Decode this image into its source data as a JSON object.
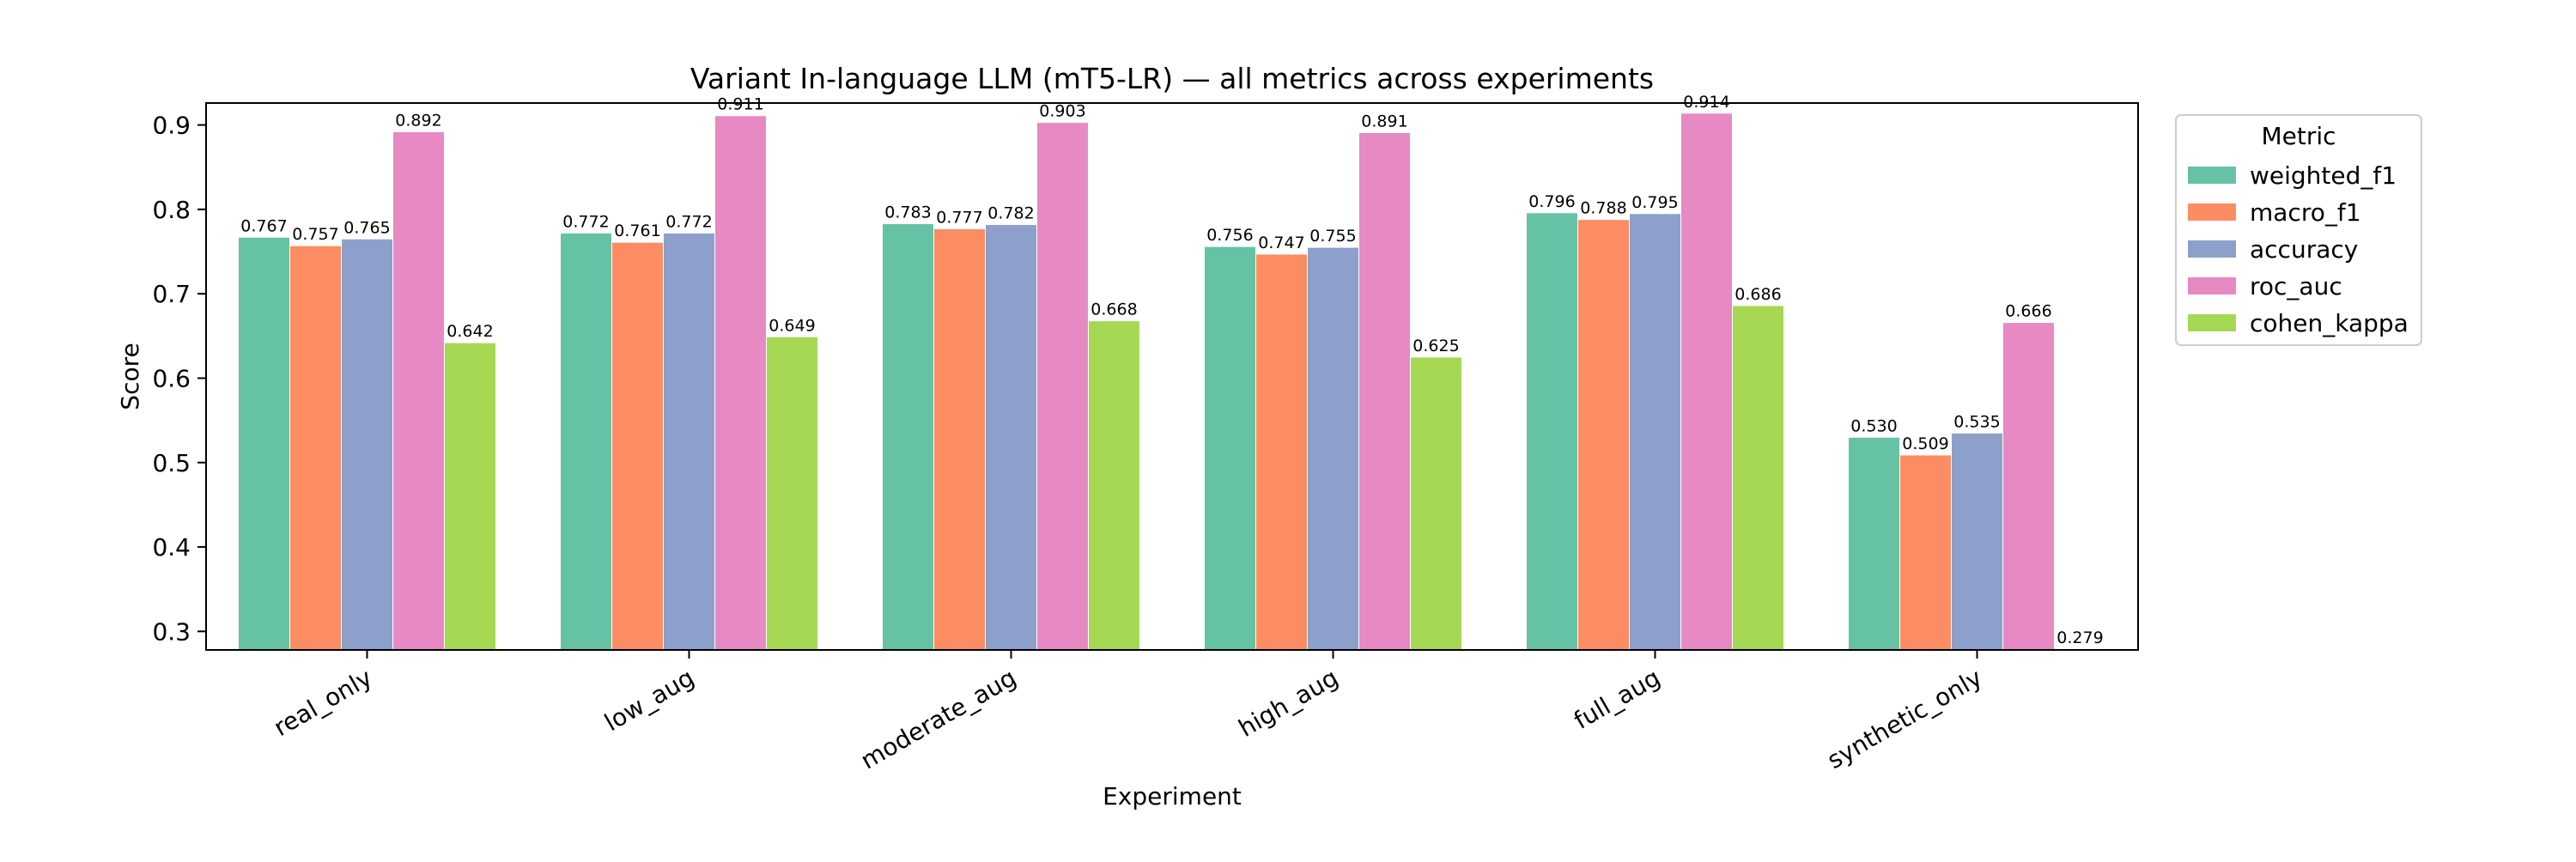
{
  "chart_data": {
    "type": "bar",
    "title": "Variant In-language LLM (mT5-LR) — all metrics across experiments",
    "xlabel": "Experiment",
    "ylabel": "Score",
    "ylim": [
      0.278,
      0.926
    ],
    "yticks": [
      "0.3",
      "0.4",
      "0.5",
      "0.6",
      "0.7",
      "0.8",
      "0.9"
    ],
    "grid": false,
    "legend": {
      "title": "Metric",
      "placement": "top-right outside"
    },
    "categories": [
      "real_only",
      "low_aug",
      "moderate_aug",
      "high_aug",
      "full_aug",
      "synthetic_only"
    ],
    "series": [
      {
        "name": "weighted_f1",
        "color": "#66c2a5",
        "values": [
          0.767,
          0.772,
          0.783,
          0.756,
          0.796,
          0.53
        ],
        "labels": [
          "0.767",
          "0.772",
          "0.783",
          "0.756",
          "0.796",
          "0.530"
        ]
      },
      {
        "name": "macro_f1",
        "color": "#fc8d62",
        "values": [
          0.757,
          0.761,
          0.777,
          0.747,
          0.788,
          0.509
        ],
        "labels": [
          "0.757",
          "0.761",
          "0.777",
          "0.747",
          "0.788",
          "0.509"
        ]
      },
      {
        "name": "accuracy",
        "color": "#8da0cb",
        "values": [
          0.765,
          0.772,
          0.782,
          0.755,
          0.795,
          0.535
        ],
        "labels": [
          "0.765",
          "0.772",
          "0.782",
          "0.755",
          "0.795",
          "0.535"
        ]
      },
      {
        "name": "roc_auc",
        "color": "#e78ac3",
        "values": [
          0.892,
          0.911,
          0.903,
          0.891,
          0.914,
          0.666
        ],
        "labels": [
          "0.892",
          "0.911",
          "0.903",
          "0.891",
          "0.914",
          "0.666"
        ]
      },
      {
        "name": "cohen_kappa",
        "color": "#a6d854",
        "values": [
          0.642,
          0.649,
          0.668,
          0.625,
          0.686,
          0.279
        ],
        "labels": [
          "0.642",
          "0.649",
          "0.668",
          "0.625",
          "0.686",
          "0.279"
        ]
      }
    ]
  }
}
